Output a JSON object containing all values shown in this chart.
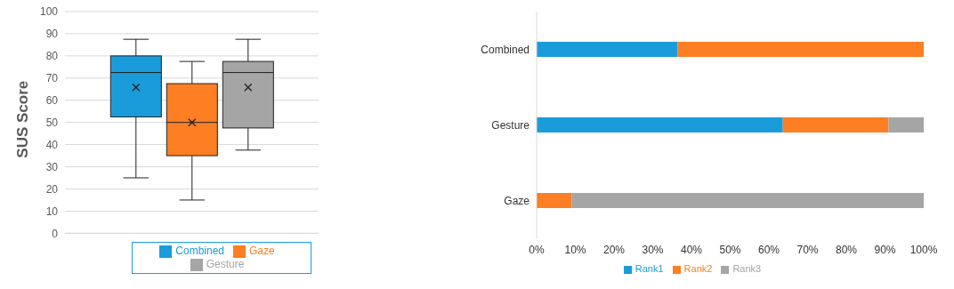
{
  "chart_data": [
    {
      "type": "box",
      "ylabel": "SUS Score",
      "categories": [
        null
      ],
      "ylim": [
        0,
        100
      ],
      "yticks": [
        0,
        10,
        20,
        30,
        40,
        50,
        60,
        70,
        80,
        90,
        100
      ],
      "grid": "y",
      "legend": "bottom",
      "series": [
        {
          "name": "Combined",
          "color": "#1a9cdb",
          "boxes": [
            {
              "low": 25,
              "q1": 52.5,
              "median": 72.5,
              "q3": 80,
              "high": 87.5,
              "mean": 65.8
            }
          ]
        },
        {
          "name": "Gaze",
          "color": "#fd7e23",
          "boxes": [
            {
              "low": 15,
              "q1": 35,
              "median": 50,
              "q3": 67.5,
              "high": 77.5,
              "mean": 50
            }
          ]
        },
        {
          "name": "Gesture",
          "color": "#a5a5a5",
          "boxes": [
            {
              "low": 37.5,
              "q1": 47.5,
              "median": 72.5,
              "q3": 77.5,
              "high": 87.5,
              "mean": 65.8
            }
          ]
        }
      ]
    },
    {
      "type": "bar",
      "orientation": "horizontal",
      "stacked": true,
      "categories": [
        "Combined",
        "Gesture",
        "Gaze"
      ],
      "xlim": [
        0,
        100
      ],
      "xticks": [
        {
          "value": 0,
          "label": "0%"
        },
        {
          "value": 10,
          "label": "10%"
        },
        {
          "value": 20,
          "label": "20%"
        },
        {
          "value": 30,
          "label": "30%"
        },
        {
          "value": 40,
          "label": "40%"
        },
        {
          "value": 50,
          "label": "50%"
        },
        {
          "value": 60,
          "label": "60%"
        },
        {
          "value": 70,
          "label": "70%"
        },
        {
          "value": 80,
          "label": "80%"
        },
        {
          "value": 90,
          "label": "90%"
        },
        {
          "value": 100,
          "label": "100%"
        }
      ],
      "legend": "bottom",
      "series": [
        {
          "name": "Rank1",
          "color": "#1a9cdb",
          "values": [
            36.4,
            63.6,
            0
          ]
        },
        {
          "name": "Rank2",
          "color": "#fd7e23",
          "values": [
            63.6,
            27.3,
            9.1
          ]
        },
        {
          "name": "Rank3",
          "color": "#a5a5a5",
          "values": [
            0,
            9.1,
            90.9
          ]
        }
      ]
    }
  ]
}
